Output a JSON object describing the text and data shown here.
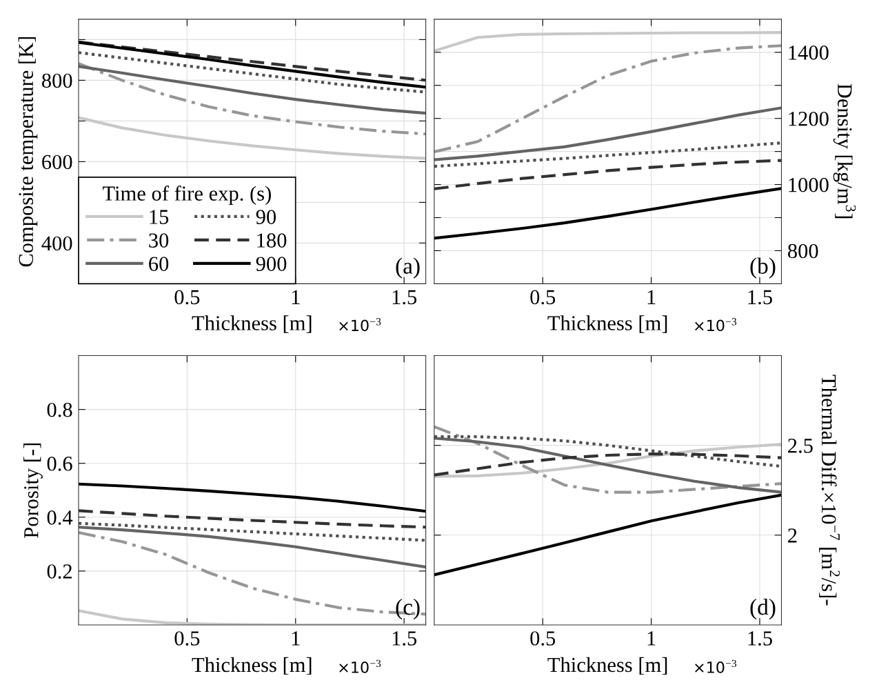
{
  "chart_data": [
    {
      "type": "line",
      "xlabel": "Thickness [m]",
      "ylabel": "Composite temperature [K]",
      "annotations": [
        "(a)",
        "×10$^{−3}$"
      ],
      "legend_title": "Time of fire exp. (s)",
      "legend": "bottom left",
      "grid": true,
      "x": [
        0,
        0.2,
        0.4,
        0.6,
        0.8,
        1.0,
        1.2,
        1.4,
        1.6
      ],
      "xlim": [
        0,
        1.6
      ],
      "xticks": [
        0.5,
        1,
        1.5
      ],
      "ylim": [
        300,
        950
      ],
      "yticks": [
        400,
        {
          "value": 500,
          "label": null
        },
        600,
        {
          "value": 700,
          "label": null
        },
        800,
        {
          "value": 900,
          "label": null
        }
      ],
      "series": [
        {
          "name": "15",
          "color": "#c8c8c8",
          "line_style": "solid",
          "values": [
            708,
            683,
            665,
            651,
            639,
            629,
            620,
            613,
            608
          ]
        },
        {
          "name": "30",
          "color": "#969696",
          "line_style": "dashdot",
          "values": [
            841,
            800,
            764,
            735,
            713,
            698,
            685,
            675,
            668
          ]
        },
        {
          "name": "60",
          "color": "#646464",
          "line_style": "solid",
          "values": [
            834,
            818,
            801,
            785,
            768,
            753,
            740,
            728,
            719
          ]
        },
        {
          "name": "90",
          "color": "#505050",
          "line_style": "dotted",
          "values": [
            868,
            855,
            842,
            829,
            816,
            803,
            790,
            780,
            771
          ]
        },
        {
          "name": "180",
          "color": "#323232",
          "line_style": "dashed",
          "values": [
            894,
            882,
            870,
            858,
            846,
            834,
            822,
            811,
            800
          ]
        },
        {
          "name": "900",
          "color": "#000000",
          "line_style": "solid",
          "values": [
            893,
            879,
            865,
            851,
            836,
            822,
            808,
            795,
            783
          ]
        }
      ]
    },
    {
      "type": "line",
      "xlabel": "Thickness [m]",
      "y2label": "Density [kg/m$^{3}$]",
      "annotations": [
        "(b)",
        "×10$^{−3}$"
      ],
      "grid": true,
      "x": [
        0,
        0.2,
        0.4,
        0.6,
        0.8,
        1.0,
        1.2,
        1.4,
        1.6
      ],
      "xlim": [
        0,
        1.6
      ],
      "xticks": [
        0.5,
        1,
        1.5
      ],
      "y2lim": [
        700,
        1500
      ],
      "y2ticks": [
        800,
        {
          "value": 900,
          "label": null
        },
        1000,
        {
          "value": 1100,
          "label": null
        },
        1200,
        {
          "value": 1300,
          "label": null
        },
        1400
      ],
      "series": [
        {
          "axis": "y2",
          "color": "#c8c8c8",
          "line_style": "solid",
          "values": [
            1404,
            1445,
            1454,
            1456,
            1457,
            1458,
            1459,
            1459,
            1460
          ]
        },
        {
          "axis": "y2",
          "color": "#969696",
          "line_style": "dashdot",
          "values": [
            1099,
            1130,
            1198,
            1266,
            1330,
            1373,
            1398,
            1413,
            1420
          ]
        },
        {
          "axis": "y2",
          "color": "#646464",
          "line_style": "solid",
          "values": [
            1075,
            1086,
            1100,
            1114,
            1136,
            1160,
            1185,
            1210,
            1232
          ]
        },
        {
          "axis": "y2",
          "color": "#505050",
          "line_style": "dotted",
          "values": [
            1055,
            1063,
            1071,
            1079,
            1088,
            1097,
            1106,
            1116,
            1126
          ]
        },
        {
          "axis": "y2",
          "color": "#323232",
          "line_style": "dashed",
          "values": [
            987,
            1003,
            1018,
            1030,
            1042,
            1052,
            1061,
            1068,
            1073
          ]
        },
        {
          "axis": "y2",
          "color": "#000000",
          "line_style": "solid",
          "values": [
            838,
            852,
            867,
            884,
            904,
            925,
            947,
            968,
            988
          ]
        }
      ]
    },
    {
      "type": "line",
      "xlabel": "Thickness [m]",
      "ylabel": "Porosity [-]",
      "annotations": [
        "(c)",
        "×10$^{−3}$"
      ],
      "grid": true,
      "x": [
        0,
        0.2,
        0.4,
        0.6,
        0.8,
        1.0,
        1.2,
        1.4,
        1.6
      ],
      "xlim": [
        0,
        1.6
      ],
      "xticks": [
        0.5,
        1,
        1.5
      ],
      "ylim": [
        0,
        1
      ],
      "yticks": [
        0.2,
        0.4,
        0.6,
        0.8
      ],
      "series": [
        {
          "color": "#c8c8c8",
          "line_style": "solid",
          "values": [
            0.053,
            0.022,
            0.008,
            0.003,
            0.001,
            0,
            0,
            0,
            0
          ]
        },
        {
          "color": "#969696",
          "line_style": "dashdot",
          "values": [
            0.343,
            0.309,
            0.262,
            0.194,
            0.137,
            0.095,
            0.064,
            0.048,
            0.04
          ]
        },
        {
          "color": "#646464",
          "line_style": "solid",
          "values": [
            0.363,
            0.353,
            0.341,
            0.328,
            0.31,
            0.29,
            0.265,
            0.24,
            0.215
          ]
        },
        {
          "color": "#505050",
          "line_style": "dotted",
          "values": [
            0.377,
            0.37,
            0.362,
            0.354,
            0.346,
            0.338,
            0.33,
            0.322,
            0.314
          ]
        },
        {
          "color": "#323232",
          "line_style": "dashed",
          "values": [
            0.424,
            0.414,
            0.404,
            0.396,
            0.388,
            0.381,
            0.374,
            0.368,
            0.363
          ]
        },
        {
          "color": "#000000",
          "line_style": "solid",
          "values": [
            0.523,
            0.516,
            0.507,
            0.497,
            0.486,
            0.474,
            0.459,
            0.441,
            0.422
          ]
        }
      ]
    },
    {
      "type": "line",
      "xlabel": "Thickness [m]",
      "y2label": "Thermal Diff.×10$^{−7}$ [m$^{2}$/s]-",
      "annotations": [
        "(d)",
        "×10$^{−3}$"
      ],
      "grid": true,
      "x": [
        0,
        0.2,
        0.4,
        0.6,
        0.8,
        1.0,
        1.2,
        1.4,
        1.6
      ],
      "xlim": [
        0,
        1.6
      ],
      "xticks": [
        0.5,
        1,
        1.5
      ],
      "y2lim": [
        1.5,
        3
      ],
      "y2ticks": [
        2,
        2.5
      ],
      "series": [
        {
          "axis": "y2",
          "color": "#c8c8c8",
          "line_style": "solid",
          "values": [
            2.327,
            2.33,
            2.345,
            2.37,
            2.4,
            2.44,
            2.47,
            2.49,
            2.506
          ]
        },
        {
          "axis": "y2",
          "color": "#969696",
          "line_style": "dashdot",
          "values": [
            2.604,
            2.511,
            2.391,
            2.279,
            2.239,
            2.239,
            2.255,
            2.271,
            2.287
          ]
        },
        {
          "axis": "y2",
          "color": "#646464",
          "line_style": "solid",
          "values": [
            2.54,
            2.52,
            2.49,
            2.44,
            2.39,
            2.343,
            2.3,
            2.265,
            2.239
          ]
        },
        {
          "axis": "y2",
          "color": "#505050",
          "line_style": "dotted",
          "values": [
            2.548,
            2.548,
            2.54,
            2.525,
            2.5,
            2.47,
            2.44,
            2.41,
            2.383
          ]
        },
        {
          "axis": "y2",
          "color": "#323232",
          "line_style": "dashed",
          "values": [
            2.335,
            2.37,
            2.405,
            2.43,
            2.445,
            2.452,
            2.45,
            2.442,
            2.431
          ]
        },
        {
          "axis": "y2",
          "color": "#000000",
          "line_style": "solid",
          "values": [
            1.779,
            1.838,
            1.897,
            1.957,
            2.018,
            2.079,
            2.13,
            2.18,
            2.223
          ]
        }
      ]
    }
  ]
}
